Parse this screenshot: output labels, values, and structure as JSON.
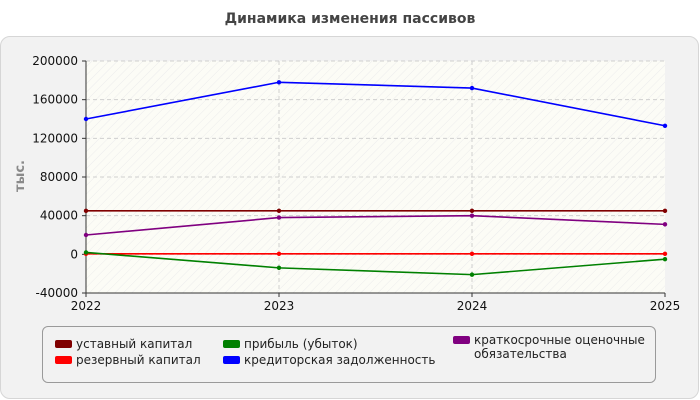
{
  "chart_data": {
    "type": "line",
    "title": "Динамика изменения пассивов",
    "ylabel": "тыс.",
    "xlabel": "",
    "x": [
      "2022",
      "2023",
      "2024",
      "2025"
    ],
    "ylim": [
      -40000,
      200000
    ],
    "yticks": [
      "200000",
      "160000",
      "120000",
      "80000",
      "40000",
      "0",
      "-40000"
    ],
    "grid": true,
    "legend_position": "bottom",
    "series": [
      {
        "name": "уставный капитал",
        "color": "#800000",
        "values": [
          45000,
          45000,
          45000,
          45000
        ]
      },
      {
        "name": "резервный капитал",
        "color": "#ff0000",
        "values": [
          500,
          500,
          500,
          500
        ]
      },
      {
        "name": "прибыль (убыток)",
        "color": "#008000",
        "values": [
          2000,
          -14000,
          -21000,
          -5000
        ]
      },
      {
        "name": "кредиторская задолженность",
        "color": "#0000ff",
        "values": [
          140000,
          178000,
          172000,
          133000
        ]
      },
      {
        "name": "краткосрочные оценочные обязательства",
        "color": "#800080",
        "values": [
          20000,
          38000,
          40000,
          31000
        ]
      }
    ]
  }
}
